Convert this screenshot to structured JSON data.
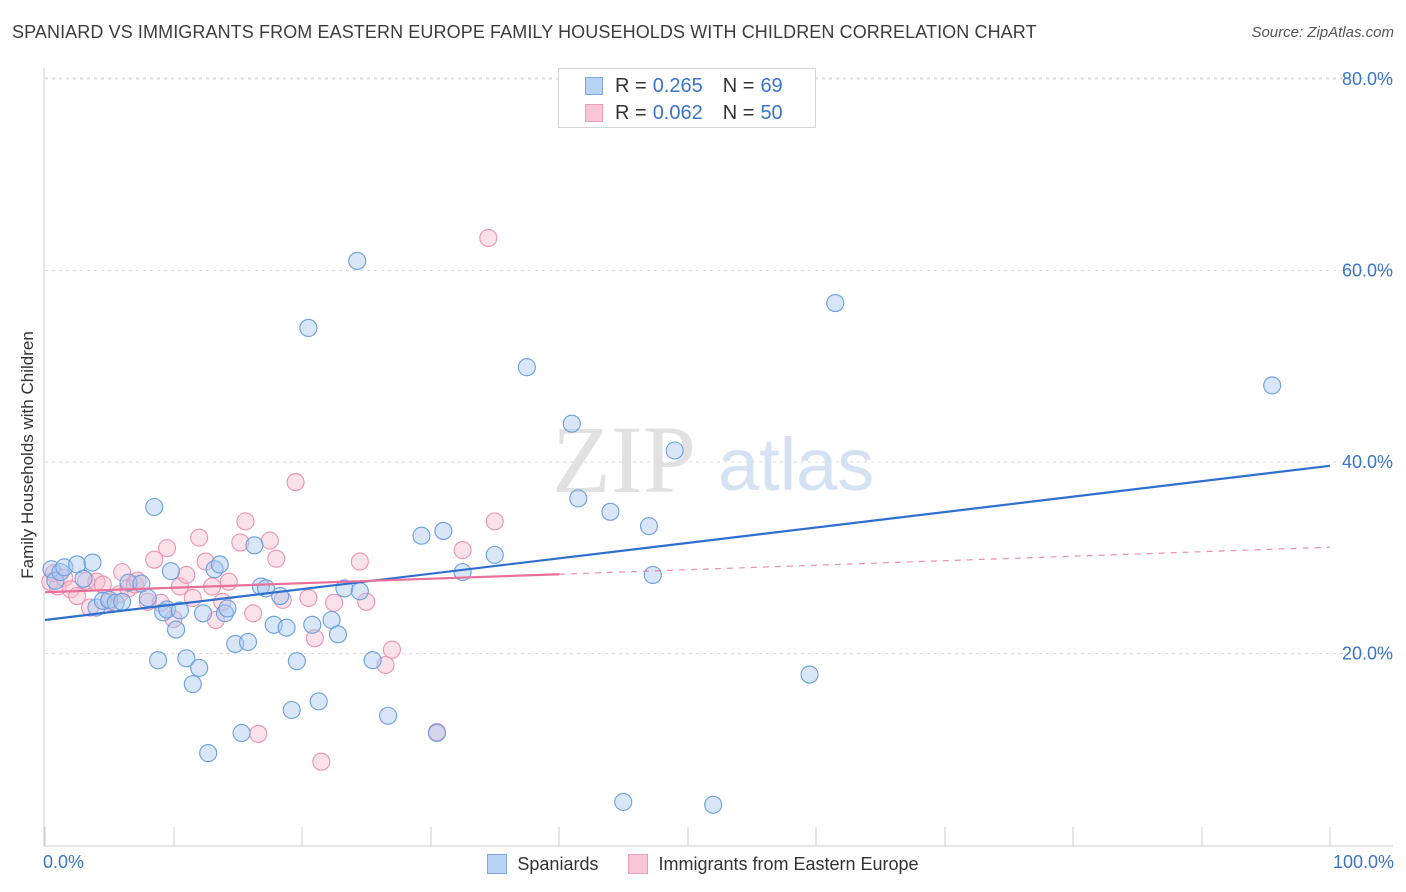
{
  "title": "SPANIARD VS IMMIGRANTS FROM EASTERN EUROPE FAMILY HOUSEHOLDS WITH CHILDREN CORRELATION CHART",
  "source": "Source: ZipAtlas.com",
  "watermark": {
    "zip": "ZIP",
    "atlas": "atlas"
  },
  "legend_top": {
    "rows": [
      {
        "r_key": "R =",
        "r_val": "0.265",
        "n_key": "N =",
        "n_val": "69"
      },
      {
        "r_key": "R =",
        "r_val": "0.062",
        "n_key": "N =",
        "n_val": "50"
      }
    ]
  },
  "legend_bottom": {
    "series1": "Spaniards",
    "series2": "Immigrants from Eastern Europe"
  },
  "x_axis": {
    "min_label": "0.0%",
    "max_label": "100.0%"
  },
  "colors": {
    "blue_fill": "#a9c8f0",
    "blue_stroke": "#6a9fe0",
    "blue_line": "#2f6fd0",
    "pink_fill": "#f6bccd",
    "pink_stroke": "#ec93b1",
    "pink_line": "#e8709a",
    "axis_text": "#3a74c9",
    "grid": "#dddddd"
  },
  "chart_data": {
    "type": "scatter",
    "title": "SPANIARD VS IMMIGRANTS FROM EASTERN EUROPE FAMILY HOUSEHOLDS WITH CHILDREN CORRELATION CHART",
    "xlabel": "",
    "ylabel": "Family Households with Children",
    "xlim": [
      0,
      100
    ],
    "ylim": [
      0,
      83
    ],
    "y_ticks": [
      {
        "value": 80,
        "label": "80.0%"
      },
      {
        "value": 60,
        "label": "60.0%"
      },
      {
        "value": 40,
        "label": "40.0%"
      },
      {
        "value": 20,
        "label": "20.0%"
      }
    ],
    "series": [
      {
        "name": "Spaniards",
        "r": 0.265,
        "n": 69,
        "trend": {
          "x_start": 0,
          "y_start": 23.5,
          "x_end": 100,
          "y_end": 39.6,
          "dashed_from": null
        },
        "points": [
          [
            0.5,
            28.8
          ],
          [
            0.8,
            27.6
          ],
          [
            1.2,
            28.5
          ],
          [
            1.5,
            29.0
          ],
          [
            2.5,
            29.3
          ],
          [
            3.0,
            27.8
          ],
          [
            3.7,
            29.5
          ],
          [
            4.0,
            24.8
          ],
          [
            4.5,
            25.5
          ],
          [
            5.0,
            25.6
          ],
          [
            5.5,
            25.3
          ],
          [
            6.0,
            25.4
          ],
          [
            6.5,
            27.4
          ],
          [
            7.5,
            27.3
          ],
          [
            8.0,
            25.8
          ],
          [
            8.5,
            35.3
          ],
          [
            8.8,
            19.3
          ],
          [
            9.2,
            24.3
          ],
          [
            9.5,
            24.6
          ],
          [
            9.8,
            28.6
          ],
          [
            10.2,
            22.5
          ],
          [
            10.5,
            24.5
          ],
          [
            11.0,
            19.5
          ],
          [
            11.5,
            16.8
          ],
          [
            12.0,
            18.5
          ],
          [
            12.3,
            24.2
          ],
          [
            12.7,
            9.6
          ],
          [
            13.2,
            28.8
          ],
          [
            13.6,
            29.3
          ],
          [
            14.0,
            24.2
          ],
          [
            14.2,
            24.7
          ],
          [
            14.8,
            21.0
          ],
          [
            15.3,
            11.7
          ],
          [
            15.8,
            21.2
          ],
          [
            16.3,
            31.3
          ],
          [
            16.8,
            27.0
          ],
          [
            17.2,
            26.8
          ],
          [
            17.8,
            23.0
          ],
          [
            18.3,
            26.0
          ],
          [
            18.8,
            22.7
          ],
          [
            19.2,
            14.1
          ],
          [
            19.6,
            19.2
          ],
          [
            20.5,
            54.0
          ],
          [
            20.8,
            23.0
          ],
          [
            21.3,
            15.0
          ],
          [
            22.3,
            23.5
          ],
          [
            22.8,
            22.0
          ],
          [
            23.3,
            26.8
          ],
          [
            24.3,
            61.0
          ],
          [
            24.5,
            26.5
          ],
          [
            25.5,
            19.3
          ],
          [
            26.7,
            13.5
          ],
          [
            29.3,
            32.3
          ],
          [
            30.5,
            11.7
          ],
          [
            31.0,
            32.8
          ],
          [
            32.5,
            28.5
          ],
          [
            35.0,
            30.3
          ],
          [
            37.5,
            49.9
          ],
          [
            41.0,
            44.0
          ],
          [
            41.5,
            36.2
          ],
          [
            44.0,
            34.8
          ],
          [
            45.0,
            4.5
          ],
          [
            47.0,
            33.3
          ],
          [
            47.3,
            28.2
          ],
          [
            49.0,
            41.2
          ],
          [
            52.0,
            4.2
          ],
          [
            59.5,
            17.8
          ],
          [
            61.5,
            56.6
          ],
          [
            95.5,
            48.0
          ]
        ]
      },
      {
        "name": "Immigrants from Eastern Europe",
        "r": 0.062,
        "n": 50,
        "trend": {
          "x_start": 0,
          "y_start": 26.4,
          "x_end": 100,
          "y_end": 31.1,
          "dashed_from": 40
        },
        "points": [
          [
            0.4,
            27.5
          ],
          [
            0.7,
            28.4
          ],
          [
            1.0,
            27.0
          ],
          [
            1.5,
            27.9
          ],
          [
            2.0,
            26.7
          ],
          [
            2.5,
            26.0
          ],
          [
            3.2,
            27.6
          ],
          [
            3.5,
            24.8
          ],
          [
            4.0,
            27.5
          ],
          [
            4.5,
            27.2
          ],
          [
            5.0,
            25.4
          ],
          [
            5.8,
            26.2
          ],
          [
            6.0,
            28.5
          ],
          [
            6.5,
            26.8
          ],
          [
            7.0,
            27.2
          ],
          [
            7.2,
            27.6
          ],
          [
            8.0,
            25.4
          ],
          [
            8.5,
            29.8
          ],
          [
            9.0,
            25.3
          ],
          [
            9.5,
            31.0
          ],
          [
            10.0,
            23.6
          ],
          [
            10.5,
            27.0
          ],
          [
            11.0,
            28.2
          ],
          [
            11.5,
            25.8
          ],
          [
            12.0,
            32.1
          ],
          [
            12.5,
            29.6
          ],
          [
            13.0,
            27.0
          ],
          [
            13.3,
            23.5
          ],
          [
            13.8,
            25.4
          ],
          [
            14.3,
            27.5
          ],
          [
            15.2,
            31.6
          ],
          [
            15.6,
            33.8
          ],
          [
            16.2,
            24.2
          ],
          [
            16.6,
            11.6
          ],
          [
            17.5,
            31.8
          ],
          [
            18.0,
            29.9
          ],
          [
            18.5,
            25.6
          ],
          [
            19.5,
            37.9
          ],
          [
            20.5,
            25.8
          ],
          [
            21.0,
            21.6
          ],
          [
            21.5,
            8.7
          ],
          [
            22.5,
            25.3
          ],
          [
            24.5,
            29.6
          ],
          [
            25.0,
            25.4
          ],
          [
            26.5,
            18.8
          ],
          [
            27.0,
            20.4
          ],
          [
            30.5,
            11.8
          ],
          [
            32.5,
            30.8
          ],
          [
            34.5,
            63.4
          ],
          [
            35.0,
            33.8
          ]
        ]
      }
    ]
  }
}
